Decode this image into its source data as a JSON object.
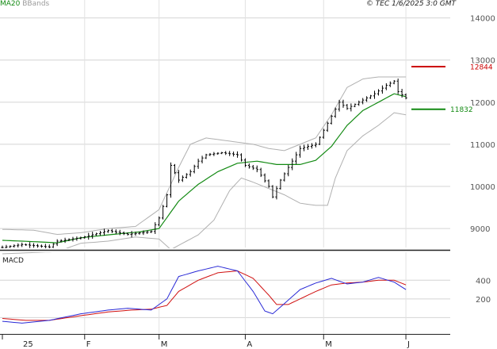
{
  "header": {
    "ma_label": "MA20",
    "bb_label": "BBands",
    "stamp": "© TEC 1/6/2025 3:0 GMT"
  },
  "chart_data": {
    "type": "candlestick",
    "title": "",
    "price_axis": {
      "ylim": [
        8550,
        14200
      ],
      "ticks": [
        {
          "value": 9000,
          "label": "9000"
        },
        {
          "value": 10000,
          "label": "10000"
        },
        {
          "value": 11000,
          "label": "11000"
        },
        {
          "value": 12000,
          "label": "12000"
        },
        {
          "value": 13000,
          "label": "13000"
        },
        {
          "value": 14000,
          "label": "14000"
        }
      ],
      "grid": true
    },
    "x_axis": {
      "n_bars": 105,
      "ticks": [
        {
          "index": 0,
          "label": "25"
        },
        {
          "index": 21,
          "label": "F"
        },
        {
          "index": 40,
          "label": "M"
        },
        {
          "index": 62,
          "label": "A"
        },
        {
          "index": 82,
          "label": "M"
        },
        {
          "index": 103,
          "label": "J"
        }
      ]
    },
    "levels": [
      {
        "name": "resistance",
        "value": 12844,
        "label": "12844",
        "color": "#cc0000"
      },
      {
        "name": "support",
        "value": 11832,
        "label": "11832",
        "color": "#138a13"
      }
    ],
    "close_anchors": [
      [
        0,
        8550
      ],
      [
        5,
        8620
      ],
      [
        12,
        8560
      ],
      [
        14,
        8700
      ],
      [
        20,
        8780
      ],
      [
        27,
        8950
      ],
      [
        32,
        8860
      ],
      [
        38,
        8930
      ],
      [
        40,
        9250
      ],
      [
        42,
        9800
      ],
      [
        43,
        10500
      ],
      [
        45,
        10150
      ],
      [
        48,
        10350
      ],
      [
        50,
        10600
      ],
      [
        52,
        10750
      ],
      [
        56,
        10800
      ],
      [
        60,
        10750
      ],
      [
        62,
        10500
      ],
      [
        65,
        10400
      ],
      [
        68,
        10000
      ],
      [
        69,
        9750
      ],
      [
        71,
        10150
      ],
      [
        73,
        10450
      ],
      [
        76,
        10900
      ],
      [
        80,
        11000
      ],
      [
        83,
        11500
      ],
      [
        86,
        12000
      ],
      [
        88,
        11850
      ],
      [
        92,
        12050
      ],
      [
        95,
        12200
      ],
      [
        98,
        12400
      ],
      [
        100,
        12500
      ],
      [
        101,
        12250
      ],
      [
        103,
        12100
      ]
    ],
    "ma20_anchors": [
      [
        0,
        8720
      ],
      [
        10,
        8680
      ],
      [
        14,
        8660
      ],
      [
        20,
        8780
      ],
      [
        27,
        8850
      ],
      [
        35,
        8920
      ],
      [
        40,
        9000
      ],
      [
        45,
        9650
      ],
      [
        50,
        10050
      ],
      [
        55,
        10350
      ],
      [
        60,
        10550
      ],
      [
        65,
        10600
      ],
      [
        70,
        10520
      ],
      [
        76,
        10520
      ],
      [
        80,
        10620
      ],
      [
        84,
        10950
      ],
      [
        88,
        11450
      ],
      [
        92,
        11800
      ],
      [
        96,
        12000
      ],
      [
        100,
        12200
      ],
      [
        103,
        12130
      ]
    ],
    "bb_upper_anchors": [
      [
        0,
        8980
      ],
      [
        8,
        8960
      ],
      [
        14,
        8860
      ],
      [
        20,
        8900
      ],
      [
        27,
        9000
      ],
      [
        34,
        9050
      ],
      [
        40,
        9450
      ],
      [
        45,
        10450
      ],
      [
        48,
        11000
      ],
      [
        52,
        11150
      ],
      [
        56,
        11100
      ],
      [
        60,
        11050
      ],
      [
        64,
        11000
      ],
      [
        68,
        10900
      ],
      [
        72,
        10850
      ],
      [
        76,
        11000
      ],
      [
        80,
        11150
      ],
      [
        84,
        11700
      ],
      [
        88,
        12350
      ],
      [
        92,
        12550
      ],
      [
        96,
        12600
      ],
      [
        103,
        12600
      ]
    ],
    "bb_lower_anchors": [
      [
        0,
        8400
      ],
      [
        8,
        8430
      ],
      [
        14,
        8450
      ],
      [
        20,
        8650
      ],
      [
        27,
        8700
      ],
      [
        34,
        8800
      ],
      [
        40,
        8750
      ],
      [
        43,
        8500
      ],
      [
        46,
        8650
      ],
      [
        50,
        8850
      ],
      [
        54,
        9200
      ],
      [
        58,
        9900
      ],
      [
        61,
        10200
      ],
      [
        64,
        10100
      ],
      [
        68,
        9950
      ],
      [
        72,
        9800
      ],
      [
        76,
        9600
      ],
      [
        80,
        9550
      ],
      [
        83,
        9550
      ],
      [
        85,
        10200
      ],
      [
        88,
        10850
      ],
      [
        92,
        11200
      ],
      [
        96,
        11450
      ],
      [
        100,
        11750
      ],
      [
        103,
        11700
      ]
    ],
    "macd": {
      "title": "MACD",
      "ylim": [
        -150,
        700
      ],
      "ticks": [
        {
          "value": 200,
          "label": "200"
        },
        {
          "value": 400,
          "label": "400"
        }
      ],
      "macd_anchors": [
        [
          0,
          -40
        ],
        [
          5,
          -60
        ],
        [
          12,
          -30
        ],
        [
          20,
          40
        ],
        [
          27,
          80
        ],
        [
          32,
          100
        ],
        [
          38,
          80
        ],
        [
          42,
          200
        ],
        [
          45,
          440
        ],
        [
          50,
          500
        ],
        [
          55,
          550
        ],
        [
          60,
          500
        ],
        [
          64,
          280
        ],
        [
          67,
          70
        ],
        [
          69,
          40
        ],
        [
          72,
          150
        ],
        [
          76,
          300
        ],
        [
          80,
          370
        ],
        [
          84,
          420
        ],
        [
          88,
          360
        ],
        [
          92,
          380
        ],
        [
          96,
          430
        ],
        [
          100,
          380
        ],
        [
          103,
          300
        ]
      ],
      "signal_anchors": [
        [
          0,
          -10
        ],
        [
          6,
          -30
        ],
        [
          12,
          -30
        ],
        [
          20,
          20
        ],
        [
          27,
          60
        ],
        [
          33,
          80
        ],
        [
          38,
          90
        ],
        [
          42,
          130
        ],
        [
          45,
          280
        ],
        [
          50,
          400
        ],
        [
          55,
          480
        ],
        [
          60,
          500
        ],
        [
          64,
          420
        ],
        [
          68,
          240
        ],
        [
          70,
          140
        ],
        [
          73,
          140
        ],
        [
          77,
          220
        ],
        [
          80,
          280
        ],
        [
          84,
          350
        ],
        [
          88,
          370
        ],
        [
          92,
          380
        ],
        [
          96,
          400
        ],
        [
          100,
          400
        ],
        [
          103,
          350
        ]
      ],
      "colors": {
        "macd": "#2a2ad6",
        "signal": "#d01010"
      }
    },
    "colors": {
      "ma20": "#138a13",
      "bbands": "#b0b0b0",
      "bars": "#000000",
      "grid": "#d4d4d4"
    }
  }
}
